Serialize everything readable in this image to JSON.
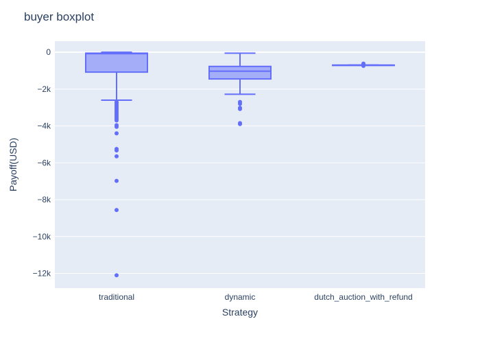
{
  "chart_data": {
    "type": "box",
    "title": "buyer boxplot",
    "xlabel": "Strategy",
    "ylabel": "Payoff(USD)",
    "categories": [
      "traditional",
      "dynamic",
      "dutch_auction_with_refund"
    ],
    "ylim": [
      -12800,
      600
    ],
    "yticks": [
      0,
      -2000,
      -4000,
      -6000,
      -8000,
      -10000,
      -12000
    ],
    "ytick_labels": [
      "0",
      "−2k",
      "−4k",
      "−6k",
      "−8k",
      "−10k",
      "−12k"
    ],
    "grid": true,
    "color": "#636efa",
    "fill": "rgba(99,110,250,0.5)",
    "boxes": [
      {
        "category": "traditional",
        "lower_whisker": -2600,
        "q1": -1080,
        "median": -80,
        "q3": -50,
        "upper_whisker": 0,
        "outliers": [
          -2700,
          -2780,
          -2850,
          -2920,
          -3000,
          -3080,
          -3150,
          -3230,
          -3300,
          -3380,
          -3460,
          -3540,
          -3620,
          -3700,
          -3960,
          -4050,
          -4400,
          -5250,
          -5330,
          -5650,
          -6980,
          -8560,
          -12100
        ]
      },
      {
        "category": "dynamic",
        "lower_whisker": -2280,
        "q1": -1450,
        "median": -1030,
        "q3": -770,
        "upper_whisker": -50,
        "outliers": [
          -2700,
          -2800,
          -3020,
          -3080,
          -3850,
          -3900
        ]
      },
      {
        "category": "dutch_auction_with_refund",
        "lower_whisker": -700,
        "q1": -700,
        "median": -700,
        "q3": -700,
        "upper_whisker": -700,
        "outliers": [
          -620,
          -660,
          -710,
          -740
        ]
      }
    ]
  }
}
